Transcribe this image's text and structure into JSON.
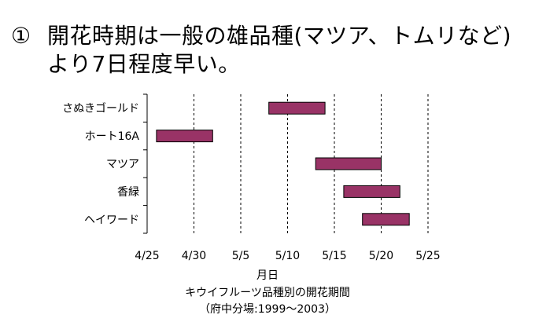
{
  "heading": {
    "number": "①",
    "line1": "開花時期は一般の雄品種(マツア、トムリなど)",
    "line2": "より7日程度早い。"
  },
  "chart_data": {
    "type": "bar",
    "orientation": "horizontal-range",
    "title": "キウイフルーツ品種別の開花期間",
    "subtitle": "（府中分場:1999～2003）",
    "xlabel": "月日",
    "ylabel": "",
    "x_ticks": [
      "4/25",
      "4/30",
      "5/5",
      "5/10",
      "5/15",
      "5/20",
      "5/25"
    ],
    "xlim": [
      "4/25",
      "5/25"
    ],
    "grid": "vertical dashed",
    "bar_color": "#993366",
    "categories": [
      "さぬきゴールド",
      "ホート16A",
      "マツア",
      "香緑",
      "ヘイワード"
    ],
    "series": [
      {
        "values": [
          {
            "start": "5/8",
            "end": "5/14"
          },
          {
            "start": "4/26",
            "end": "5/2"
          },
          {
            "start": "5/13",
            "end": "5/20"
          },
          {
            "start": "5/16",
            "end": "5/22"
          },
          {
            "start": "5/18",
            "end": "5/23"
          }
        ]
      }
    ]
  }
}
